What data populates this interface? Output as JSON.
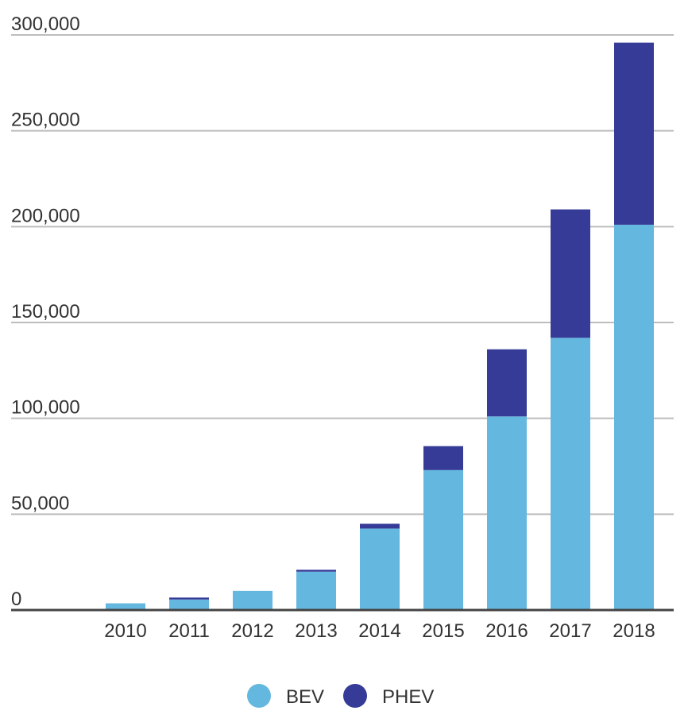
{
  "chart_data": {
    "type": "bar",
    "stacked": true,
    "categories": [
      "2010",
      "2011",
      "2012",
      "2013",
      "2014",
      "2015",
      "2016",
      "2017",
      "2018"
    ],
    "series": [
      {
        "name": "BEV",
        "color": "#64b7df",
        "values": [
          3500,
          5500,
          10000,
          20000,
          42500,
          73000,
          101000,
          142000,
          201000
        ]
      },
      {
        "name": "PHEV",
        "color": "#353b96",
        "values": [
          0,
          1000,
          0,
          1000,
          2500,
          12500,
          35000,
          67000,
          95000
        ]
      }
    ],
    "y_ticks": [
      "0",
      "50,000",
      "100,000",
      "150,000",
      "200,000",
      "250,000",
      "300,000"
    ],
    "ylim": [
      0,
      300000
    ],
    "grid": true,
    "legend_position": "bottom"
  }
}
